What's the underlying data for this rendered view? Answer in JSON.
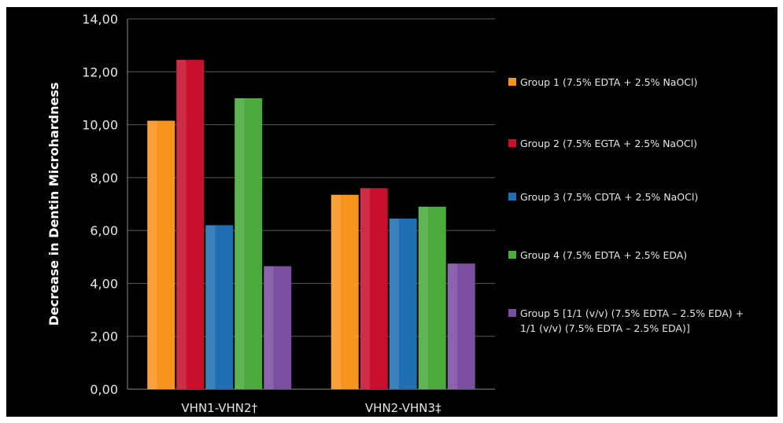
{
  "colors": {
    "background": "#000000",
    "grid": "#5a5a5a",
    "axis_text": "#e6e6e6",
    "series": [
      "#f7941d",
      "#c8102e",
      "#1f6fb2",
      "#4caa3c",
      "#7b4fa0"
    ]
  },
  "chart_data": {
    "type": "bar",
    "title": "",
    "xlabel": "",
    "ylabel": "Decrease in Dentin Microhardness",
    "ylim": [
      0,
      14
    ],
    "yticks": [
      "0,00",
      "2,00",
      "4,00",
      "6,00",
      "8,00",
      "10,00",
      "12,00",
      "14,00"
    ],
    "grid": true,
    "legend_position": "right",
    "categories": [
      "VHN1-VHN2†",
      "VHN2-VHN3‡"
    ],
    "series": [
      {
        "name": "Group 1 (7.5% EDTA + 2.5% NaOCl)",
        "values": [
          10.15,
          7.35
        ]
      },
      {
        "name": "Group 2 (7.5% EGTA + 2.5% NaOCl)",
        "values": [
          12.45,
          7.6
        ]
      },
      {
        "name": "Group 3 (7.5% CDTA + 2.5% NaOCl)",
        "values": [
          6.2,
          6.45
        ]
      },
      {
        "name": "Group 4 (7.5% EDTA + 2.5% EDA)",
        "values": [
          11.0,
          6.9
        ]
      },
      {
        "name": "Group 5 [1/1 (v/v) (7.5% EDTA – 2.5% EDA) + 1/1 (v/v) (7.5% EDTA – 2.5% EDA)]",
        "values": [
          4.65,
          4.75
        ]
      }
    ]
  }
}
